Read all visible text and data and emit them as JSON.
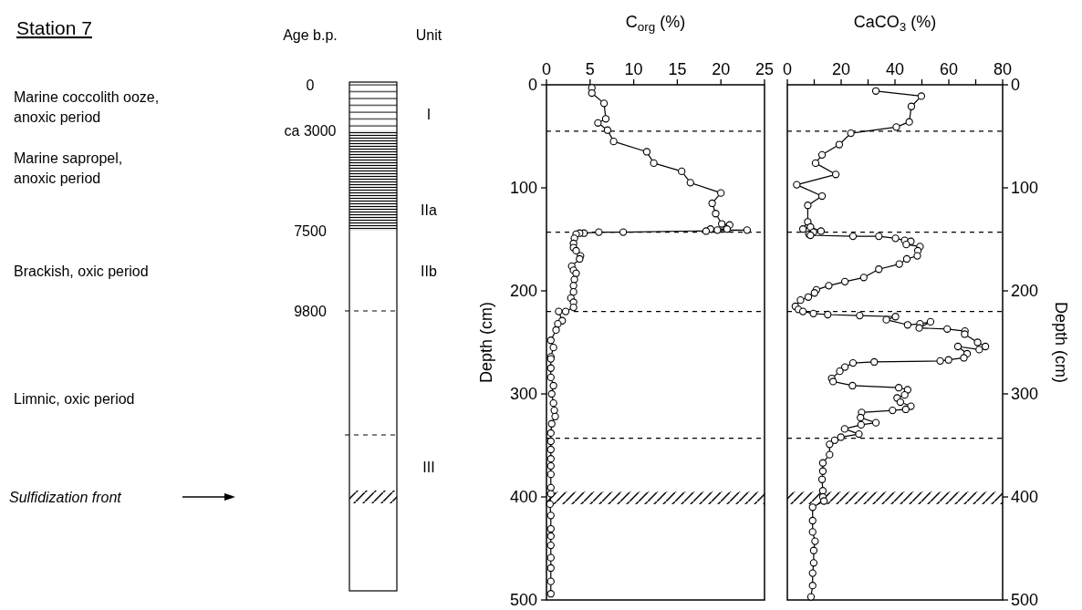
{
  "chart_data": [
    {
      "type": "other",
      "title": "Station 7",
      "annotations": [
        "Age b.p.",
        "Unit",
        "Marine coccolith ooze, anoxic period",
        "Marine sapropel, anoxic period",
        "Brackish, oxic period",
        "Limnic, oxic period",
        "0",
        "ca 3000",
        "7500",
        "9800",
        "I",
        "IIa",
        "IIb",
        "III",
        "Sulfidization front"
      ]
    },
    {
      "type": "line",
      "title": "C$_{org}$ (%)",
      "ylabel": "Depth (cm)",
      "xlim": [
        0,
        25
      ],
      "xticks": [
        0,
        5,
        10,
        15,
        20,
        25
      ],
      "ylim": [
        500,
        0
      ],
      "yticks": [
        0,
        100,
        200,
        300,
        400,
        500
      ],
      "marker": "circle",
      "grid": false,
      "series": [
        {
          "color": "#000000",
          "x": [
            5.2,
            5.2,
            6.6,
            6.8,
            5.9,
            7.0,
            7.7,
            11.5,
            12.3,
            15.5,
            16.5,
            20.0,
            19.0,
            19.4,
            20.1,
            21.0,
            20.7,
            18.8,
            18.3,
            19.6,
            23.0,
            8.8,
            6.0,
            4.3,
            3.8,
            3.4,
            3.2,
            3.1,
            3.1,
            3.4,
            3.9,
            3.8,
            2.9,
            3.1,
            3.4,
            3.2,
            3.1,
            3.1,
            2.8,
            3.1,
            3.1,
            2.2,
            1.4,
            1.8,
            1.3,
            1.1,
            0.5,
            0.8,
            0.5,
            0.5,
            0.5,
            0.5,
            0.8,
            0.6,
            0.8,
            0.9,
            1.0,
            0.6,
            0.5,
            0.5,
            0.5,
            0.5,
            0.5,
            0.5,
            0.5,
            0.5,
            0.4,
            0.5,
            0.5,
            0.5,
            0.5,
            0.5,
            0.5,
            0.5,
            0.5
          ],
          "values": [
            3,
            8,
            18,
            33,
            37,
            44,
            55,
            65,
            76,
            84,
            95,
            105,
            115,
            125,
            135,
            136,
            140,
            140,
            142,
            141,
            141,
            143,
            143,
            144,
            144,
            145,
            149,
            154,
            158,
            161,
            166,
            169,
            176,
            180,
            183,
            189,
            195,
            201,
            207,
            211,
            216,
            220,
            220,
            229,
            232,
            238,
            248,
            255,
            264,
            266,
            275,
            284,
            292,
            300,
            309,
            316,
            322,
            329,
            338,
            346,
            354,
            363,
            370,
            378,
            391,
            397,
            407,
            418,
            431,
            438,
            447,
            459,
            469,
            482,
            494
          ]
        }
      ],
      "ref_lines": [
        {
          "axis": "y",
          "value": 45,
          "line_style": "dashed"
        },
        {
          "axis": "y",
          "value": 143,
          "line_style": "dashed"
        },
        {
          "axis": "y",
          "value": 220,
          "line_style": "dashed"
        },
        {
          "axis": "y",
          "value": 343,
          "line_style": "dashed"
        }
      ],
      "bands": [
        {
          "axis": "y",
          "from": 395,
          "to": 407
        }
      ]
    },
    {
      "type": "line",
      "title": "CaCO$_{3}$ (%)",
      "y2label": "Depth (cm)",
      "xlim": [
        0,
        80
      ],
      "xticks": [
        0,
        {
          "value": 10,
          "label": null
        },
        20,
        {
          "value": 30,
          "label": null
        },
        40,
        {
          "value": 50,
          "label": null
        },
        60,
        {
          "value": 70,
          "label": null
        },
        80
      ],
      "y2lim": [
        500,
        0
      ],
      "y2ticks": [
        0,
        100,
        200,
        300,
        400,
        500
      ],
      "marker": "circle",
      "grid": false,
      "series": [
        {
          "color": "#000000",
          "axis": "y2",
          "x": [
            32.9,
            49.8,
            46.1,
            45.3,
            40.5,
            23.6,
            19.3,
            12.9,
            10.5,
            18.0,
            3.5,
            12.9,
            7.6,
            7.6,
            5.8,
            8.6,
            12.5,
            9.7,
            8.0,
            8.6,
            24.4,
            34.0,
            40.2,
            43.6,
            45.9,
            44.2,
            49.3,
            48.5,
            48.3,
            44.4,
            41.6,
            34.0,
            28.4,
            21.4,
            15.4,
            10.8,
            10.1,
            7.8,
            4.9,
            3.0,
            4.1,
            5.8,
            9.7,
            15.0,
            26.9,
            40.2,
            36.8,
            44.7,
            49.3,
            53.2,
            49.0,
            59.4,
            66.0,
            65.9,
            70.7,
            73.6,
            71.3,
            63.4,
            66.8,
            65.6,
            59.9,
            56.8,
            32.3,
            24.4,
            21.4,
            19.5,
            16.5,
            17.0,
            24.2,
            41.4,
            44.7,
            43.6,
            40.8,
            42.0,
            45.9,
            44.0,
            39.1,
            27.6,
            27.2,
            32.9,
            27.4,
            21.3,
            26.6,
            19.9,
            17.6,
            15.7,
            15.7,
            13.2,
            13.2,
            12.9,
            13.2,
            13.2,
            13.6,
            9.4,
            9.4,
            9.4,
            10.3,
            9.8,
            9.8,
            9.4,
            9.4,
            8.8
          ],
          "values": [
            6,
            11,
            21,
            36,
            41,
            47,
            58,
            68,
            76,
            87,
            97,
            108,
            117,
            133,
            140,
            138,
            142,
            143,
            145,
            146,
            147,
            147,
            149,
            151,
            152,
            155,
            157,
            161,
            166,
            169,
            174,
            179,
            187,
            191,
            195,
            199,
            202,
            206,
            209,
            215,
            218,
            220,
            222,
            223,
            224,
            225,
            228,
            233,
            232,
            230,
            236,
            237,
            239,
            242,
            250,
            254,
            257,
            254,
            261,
            265,
            267,
            268,
            269,
            270,
            274,
            278,
            285,
            288,
            292,
            294,
            296,
            301,
            304,
            308,
            312,
            315,
            316,
            318,
            323,
            328,
            330,
            334,
            339,
            342,
            345,
            349,
            359,
            367,
            375,
            383,
            394,
            400,
            404,
            410,
            423,
            434,
            443,
            452,
            464,
            474,
            486,
            497
          ]
        }
      ],
      "ref_lines": [
        {
          "axis": "y2",
          "value": 45,
          "line_style": "dashed"
        },
        {
          "axis": "y2",
          "value": 143,
          "line_style": "dashed"
        },
        {
          "axis": "y2",
          "value": 220,
          "line_style": "dashed"
        },
        {
          "axis": "y2",
          "value": 343,
          "line_style": "dashed"
        }
      ],
      "bands": [
        {
          "axis": "y2",
          "from": 395,
          "to": 407
        }
      ]
    }
  ]
}
